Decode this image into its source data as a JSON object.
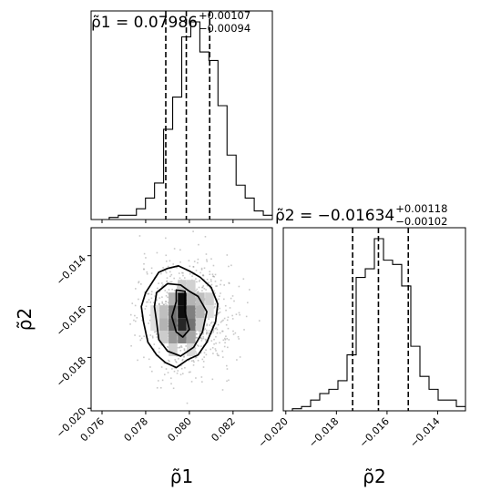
{
  "chart_data": {
    "type": "corner",
    "parameters": [
      "ρ1",
      "ρ2"
    ],
    "axis_labels": {
      "p1": "ρ̃1",
      "p2": "ρ̃2"
    },
    "titles": [
      {
        "name": "ρ̃1",
        "value": "0.07986",
        "plus": "+0.00107",
        "minus": "−0.00094"
      },
      {
        "name": "ρ̃2",
        "value": "−0.01634",
        "plus": "+0.00118",
        "minus": "−0.00102"
      }
    ],
    "quantiles": {
      "p1": [
        0.07892,
        0.07986,
        0.08093
      ],
      "p2": [
        -0.01736,
        -0.01634,
        -0.01516
      ]
    },
    "ranges": {
      "p1": [
        0.0755,
        0.0838
      ],
      "p2": [
        -0.0201,
        -0.0129
      ]
    },
    "ticks": {
      "p1": [
        0.076,
        0.078,
        0.08,
        0.082
      ],
      "p1_labels": [
        "0.076",
        "0.078",
        "0.080",
        "0.082"
      ],
      "p2": [
        -0.02,
        -0.018,
        -0.016,
        -0.014
      ],
      "p2_labels": [
        "−0.020",
        "−0.018",
        "−0.016",
        "−0.014"
      ]
    },
    "hist_p1": {
      "edges_start": 0.0755,
      "bin_width": 0.000415,
      "counts": [
        0,
        0,
        1,
        2,
        2,
        5,
        10,
        17,
        42,
        57,
        85,
        92,
        78,
        74,
        53,
        30,
        16,
        10,
        4,
        2
      ]
    },
    "hist_p2": {
      "edges_start": -0.0201,
      "bin_width": 0.00036,
      "counts": [
        0,
        1,
        2,
        5,
        8,
        10,
        14,
        26,
        62,
        66,
        80,
        70,
        68,
        58,
        30,
        16,
        10,
        5,
        5,
        2
      ]
    },
    "contours_2d": {
      "levels": [
        "inner",
        "middle",
        "outer"
      ],
      "center": [
        0.07986,
        -0.01634
      ],
      "inner": [
        [
          0.0794,
          -0.01535
        ],
        [
          0.0798,
          -0.0154
        ],
        [
          0.0798,
          -0.0162
        ],
        [
          0.08,
          -0.0169
        ],
        [
          0.0797,
          -0.0172
        ],
        [
          0.0794,
          -0.017
        ],
        [
          0.0792,
          -0.0164
        ],
        [
          0.0794,
          -0.0158
        ]
      ],
      "middle": [
        [
          0.0785,
          -0.01545
        ],
        [
          0.079,
          -0.0151
        ],
        [
          0.0796,
          -0.01515
        ],
        [
          0.08,
          -0.0154
        ],
        [
          0.0804,
          -0.0156
        ],
        [
          0.0808,
          -0.0162
        ],
        [
          0.0806,
          -0.017
        ],
        [
          0.0802,
          -0.0176
        ],
        [
          0.0796,
          -0.01795
        ],
        [
          0.079,
          -0.01775
        ],
        [
          0.0786,
          -0.0173
        ],
        [
          0.0785,
          -0.0166
        ],
        [
          0.0784,
          -0.016
        ]
      ],
      "outer": [
        [
          0.078,
          -0.01545
        ],
        [
          0.0786,
          -0.01465
        ],
        [
          0.079,
          -0.0145
        ],
        [
          0.0795,
          -0.0144
        ],
        [
          0.08,
          -0.0146
        ],
        [
          0.0805,
          -0.01485
        ],
        [
          0.081,
          -0.01525
        ],
        [
          0.0813,
          -0.0159
        ],
        [
          0.0812,
          -0.0166
        ],
        [
          0.0808,
          -0.0174
        ],
        [
          0.0804,
          -0.0179
        ],
        [
          0.0799,
          -0.0181
        ],
        [
          0.0794,
          -0.0184
        ],
        [
          0.0789,
          -0.0182
        ],
        [
          0.0785,
          -0.0179
        ],
        [
          0.0781,
          -0.0174
        ],
        [
          0.0779,
          -0.0166
        ],
        [
          0.0778,
          -0.016
        ]
      ]
    },
    "density_cells": [
      {
        "x": 0.07967,
        "y": -0.0157,
        "shade": 0.95
      },
      {
        "x": 0.07967,
        "y": -0.0162,
        "shade": 0.95
      },
      {
        "x": 0.07967,
        "y": -0.0167,
        "shade": 0.85
      },
      {
        "x": 0.07925,
        "y": -0.0162,
        "shade": 0.55
      },
      {
        "x": 0.08008,
        "y": -0.0162,
        "shade": 0.5
      },
      {
        "x": 0.07925,
        "y": -0.0167,
        "shade": 0.6
      },
      {
        "x": 0.08008,
        "y": -0.0167,
        "shade": 0.55
      },
      {
        "x": 0.07967,
        "y": -0.0172,
        "shade": 0.5
      },
      {
        "x": 0.07925,
        "y": -0.0172,
        "shade": 0.4
      },
      {
        "x": 0.08008,
        "y": -0.0172,
        "shade": 0.35
      },
      {
        "x": 0.07883,
        "y": -0.0167,
        "shade": 0.3
      },
      {
        "x": 0.0805,
        "y": -0.0162,
        "shade": 0.3
      },
      {
        "x": 0.07883,
        "y": -0.0162,
        "shade": 0.25
      },
      {
        "x": 0.0805,
        "y": -0.0157,
        "shade": 0.25
      },
      {
        "x": 0.07925,
        "y": -0.0157,
        "shade": 0.3
      },
      {
        "x": 0.08008,
        "y": -0.0157,
        "shade": 0.3
      },
      {
        "x": 0.07883,
        "y": -0.0172,
        "shade": 0.2
      },
      {
        "x": 0.0805,
        "y": -0.0167,
        "shade": 0.2
      },
      {
        "x": 0.08092,
        "y": -0.0157,
        "shade": 0.18
      },
      {
        "x": 0.07967,
        "y": -0.0152,
        "shade": 0.2
      },
      {
        "x": 0.08008,
        "y": -0.0152,
        "shade": 0.18
      },
      {
        "x": 0.07925,
        "y": -0.0177,
        "shade": 0.18
      },
      {
        "x": 0.08008,
        "y": -0.0177,
        "shade": 0.15
      },
      {
        "x": 0.07842,
        "y": -0.0162,
        "shade": 0.12
      },
      {
        "x": 0.08092,
        "y": -0.0162,
        "shade": 0.12
      },
      {
        "x": 0.07842,
        "y": -0.0167,
        "shade": 0.12
      }
    ],
    "color": "#000000"
  }
}
